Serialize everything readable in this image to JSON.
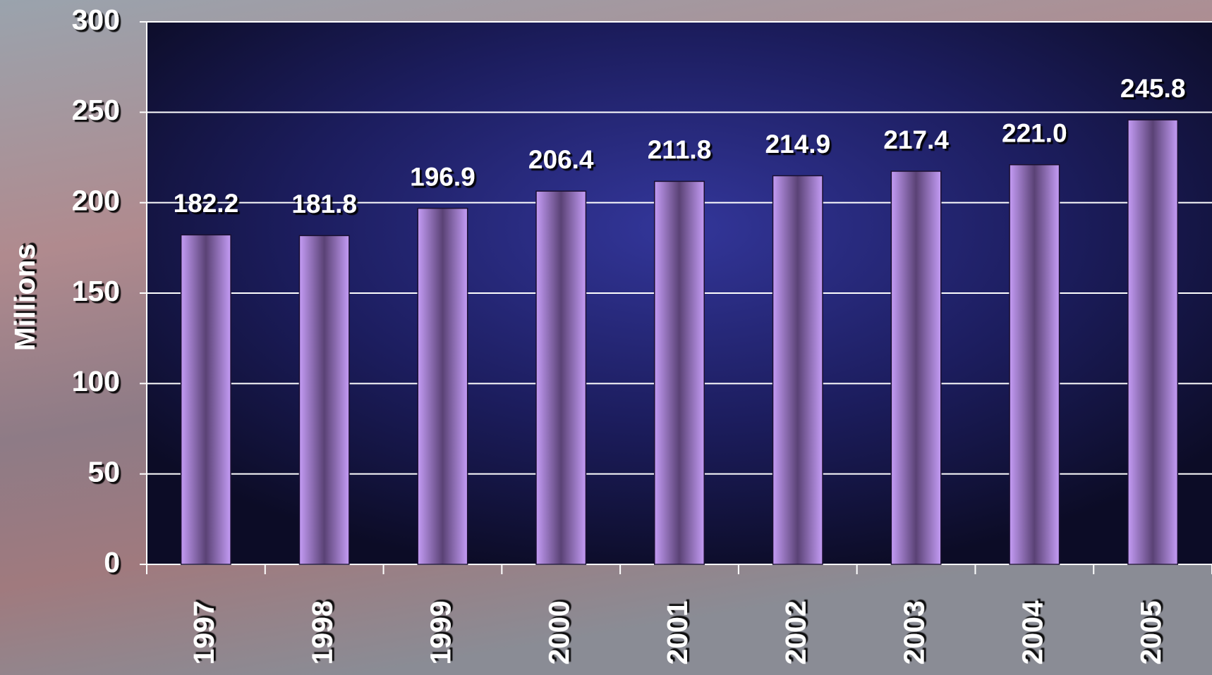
{
  "chart_data": {
    "type": "bar",
    "y_label": "Millions",
    "categories": [
      "1997",
      "1998",
      "1999",
      "2000",
      "2001",
      "2002",
      "2003",
      "2004",
      "2005"
    ],
    "values": [
      182.2,
      181.8,
      196.9,
      206.4,
      211.8,
      214.9,
      217.4,
      221.0,
      245.8
    ],
    "value_labels": [
      "182.2",
      "181.8",
      "196.9",
      "206.4",
      "211.8",
      "214.9",
      "217.4",
      "221.0",
      "245.8"
    ],
    "color": "#b48ee8",
    "ylim": [
      0,
      300
    ],
    "yticks": [
      0,
      50,
      100,
      150,
      200,
      250,
      300
    ],
    "grid": true
  }
}
